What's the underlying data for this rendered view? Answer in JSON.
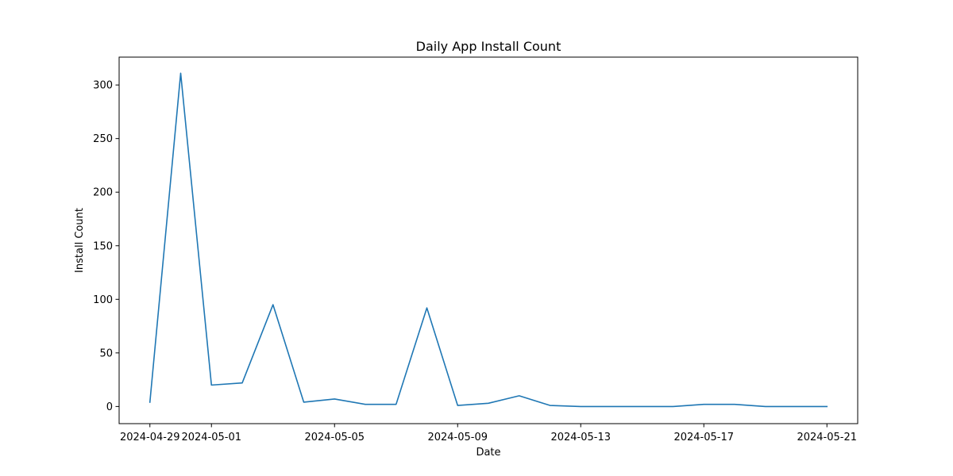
{
  "chart_data": {
    "type": "line",
    "title": "Daily App Install Count",
    "xlabel": "Date",
    "ylabel": "Install Count",
    "x": [
      "2024-04-29",
      "2024-04-30",
      "2024-05-01",
      "2024-05-02",
      "2024-05-03",
      "2024-05-04",
      "2024-05-05",
      "2024-05-06",
      "2024-05-07",
      "2024-05-08",
      "2024-05-09",
      "2024-05-10",
      "2024-05-11",
      "2024-05-12",
      "2024-05-13",
      "2024-05-14",
      "2024-05-15",
      "2024-05-16",
      "2024-05-17",
      "2024-05-18",
      "2024-05-19",
      "2024-05-20",
      "2024-05-21"
    ],
    "series": [
      {
        "values": [
          4,
          311,
          20,
          22,
          95,
          4,
          7,
          2,
          2,
          92,
          1,
          3,
          10,
          1,
          0,
          0,
          0,
          0,
          2,
          2,
          0,
          0,
          0
        ],
        "color": "#1f77b4"
      }
    ],
    "xticks": [
      "2024-04-29",
      "2024-05-01",
      "2024-05-05",
      "2024-05-09",
      "2024-05-13",
      "2024-05-17",
      "2024-05-21"
    ],
    "yticks": [
      0,
      50,
      100,
      150,
      200,
      250,
      300
    ],
    "xlim": [
      "2024-04-28",
      "2024-05-22"
    ],
    "ylim": [
      -16,
      326
    ],
    "grid": false,
    "legend": "none"
  }
}
